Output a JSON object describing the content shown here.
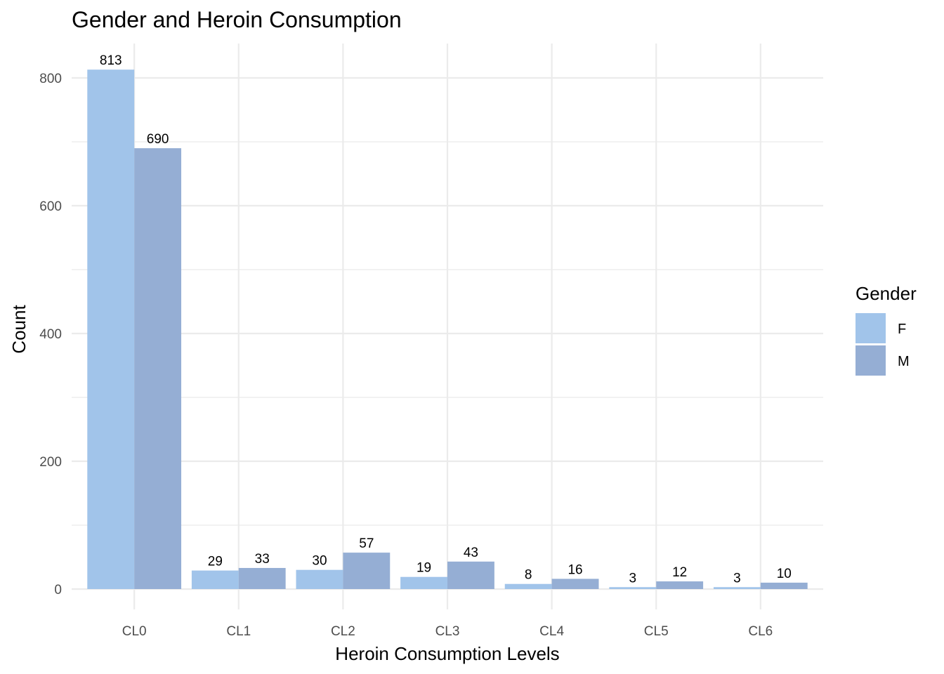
{
  "chart_data": {
    "type": "bar",
    "title": "Gender and Heroin Consumption",
    "xlabel": "Heroin Consumption Levels",
    "ylabel": "Count",
    "categories": [
      "CL0",
      "CL1",
      "CL2",
      "CL3",
      "CL4",
      "CL5",
      "CL6"
    ],
    "series": [
      {
        "name": "F",
        "color": "#a1c4ea",
        "values": [
          813,
          29,
          30,
          19,
          8,
          3,
          3
        ]
      },
      {
        "name": "M",
        "color": "#95aed4",
        "values": [
          690,
          33,
          57,
          43,
          16,
          12,
          10
        ]
      }
    ],
    "ylim": [
      -40,
      855
    ],
    "yticks": [
      0,
      200,
      400,
      600,
      800
    ],
    "grid": true,
    "legend": {
      "title": "Gender",
      "position": "right"
    }
  }
}
